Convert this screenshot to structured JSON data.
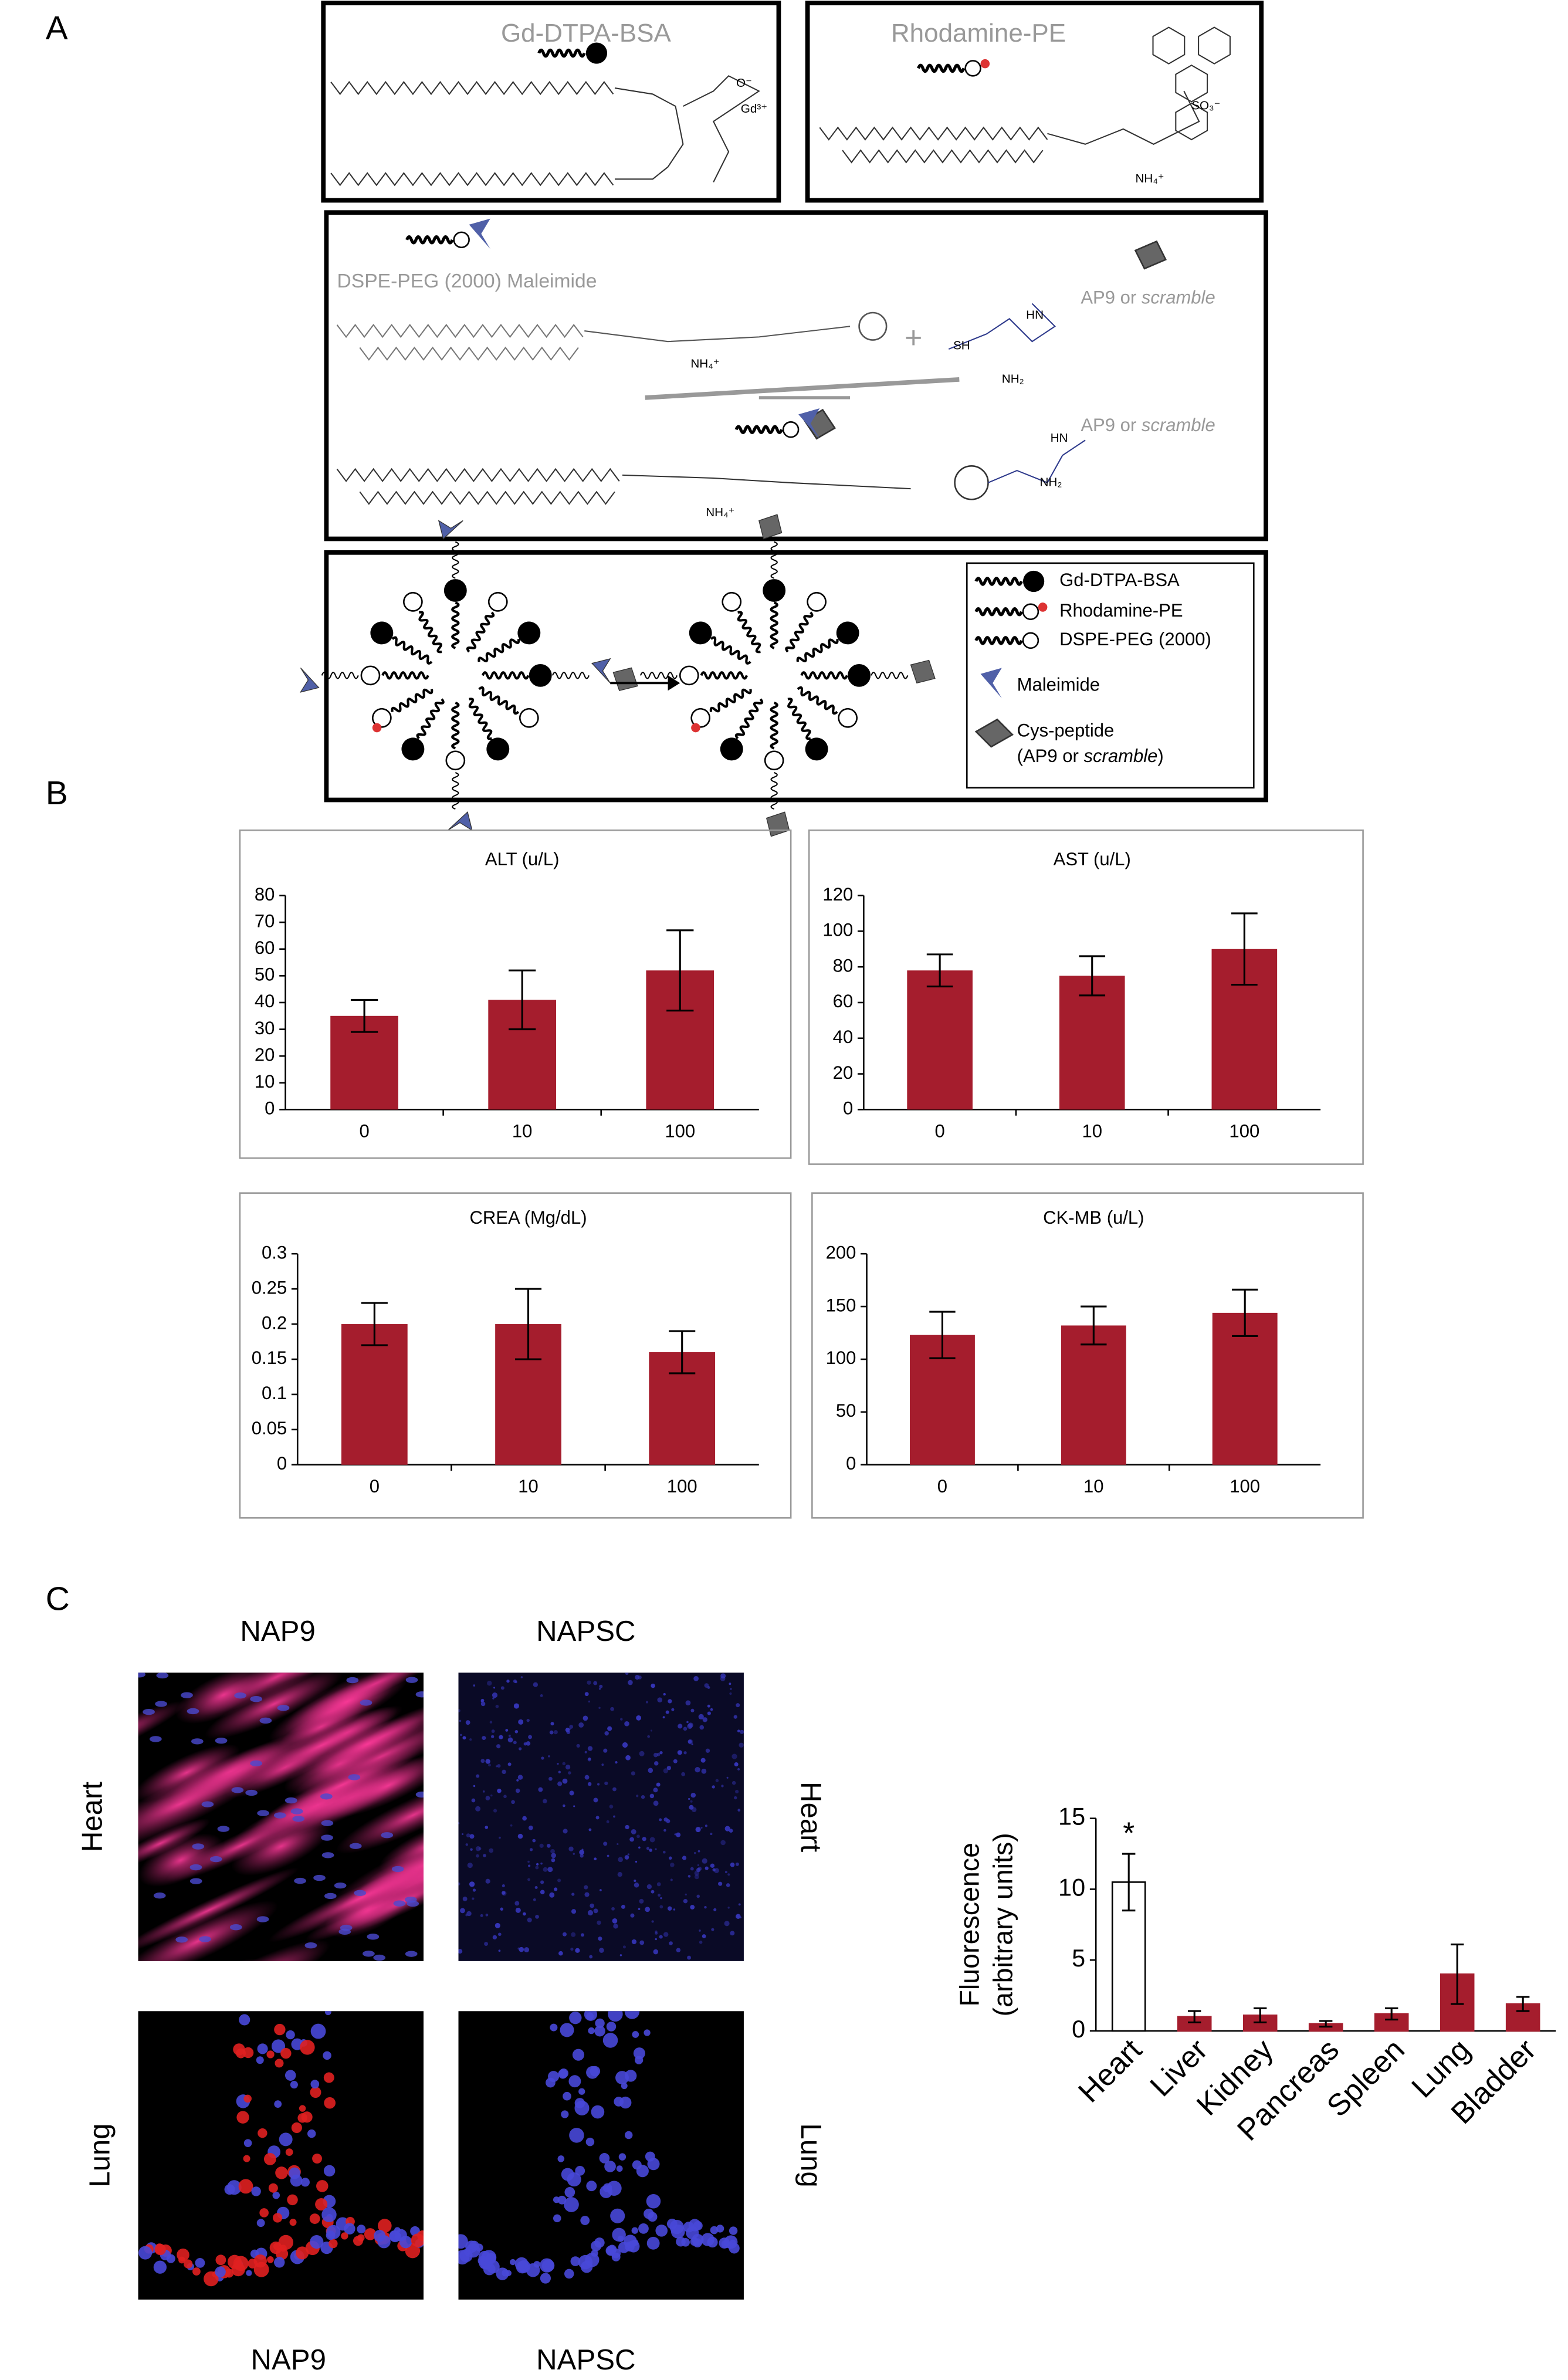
{
  "figure": {
    "panels": [
      "A",
      "B",
      "C"
    ],
    "panel_a": {
      "gd_title": "Gd-DTPA-BSA",
      "rho_title": "Rhodamine-PE",
      "dspe_title": "DSPE-PEG (2000) Maleimide",
      "peptide_top": {
        "text": "AP9 or ",
        "italic": "scramble"
      },
      "peptide_bottom": {
        "text": "AP9 or ",
        "italic": "scramble"
      },
      "plus": "+",
      "chem_labels": [
        "Gd³⁺",
        "O⁻",
        "SO₃⁻",
        "NH₄⁺",
        "HN",
        "NH₂",
        "SH",
        "NH₄⁺",
        "HN",
        "NH₂",
        "NH₄⁺"
      ],
      "legend": [
        "Gd-DTPA-BSA",
        "Rhodamine-PE",
        "DSPE-PEG (2000)",
        "Maleimide",
        "Cys-peptide"
      ],
      "legend_peptide": {
        "open": "(AP9 or ",
        "italic": "scramble",
        "close": ")"
      }
    },
    "panel_c": {
      "columns_top": [
        "NAP9",
        "NAPSC"
      ],
      "columns_bottom": [
        "NAP9",
        "NAPSC"
      ],
      "rows_left": [
        "Heart",
        "Lung"
      ],
      "rows_right": [
        "Heart",
        "Lung"
      ]
    }
  },
  "chart_data": [
    {
      "type": "bar",
      "title": "ALT (u/L)",
      "categories": [
        "0",
        "10",
        "100"
      ],
      "values": [
        35,
        41,
        52
      ],
      "errors": [
        6,
        11,
        15
      ],
      "color": "#a51d2d",
      "ylim": [
        0,
        80
      ],
      "yticks": [
        0,
        10,
        20,
        30,
        40,
        50,
        60,
        70,
        80
      ]
    },
    {
      "type": "bar",
      "title": "AST (u/L)",
      "categories": [
        "0",
        "10",
        "100"
      ],
      "values": [
        78,
        75,
        90
      ],
      "errors": [
        9,
        11,
        20
      ],
      "color": "#a51d2d",
      "ylim": [
        0,
        120
      ],
      "yticks": [
        0,
        20,
        40,
        60,
        80,
        100,
        120
      ]
    },
    {
      "type": "bar",
      "title": "CREA (Mg/dL)",
      "categories": [
        "0",
        "10",
        "100"
      ],
      "values": [
        0.2,
        0.2,
        0.16
      ],
      "errors": [
        0.03,
        0.05,
        0.03
      ],
      "color": "#a51d2d",
      "ylim": [
        0,
        0.3
      ],
      "yticks": [
        0,
        0.05,
        0.1,
        0.15,
        0.2,
        0.25,
        0.3
      ]
    },
    {
      "type": "bar",
      "title": "CK-MB (u/L)",
      "categories": [
        "0",
        "10",
        "100"
      ],
      "values": [
        123,
        132,
        144
      ],
      "errors": [
        22,
        18,
        22
      ],
      "color": "#a51d2d",
      "ylim": [
        0,
        200
      ],
      "yticks": [
        0,
        50,
        100,
        150,
        200
      ]
    },
    {
      "type": "bar",
      "ylabel": [
        "Fluorescence",
        "(arbitrary units)"
      ],
      "categories": [
        "Heart",
        "Liver",
        "Kidney",
        "Pancreas",
        "Spleen",
        "Lung",
        "Bladder"
      ],
      "values": [
        10.5,
        1,
        1.1,
        0.5,
        1.2,
        4,
        1.9
      ],
      "errors": [
        2,
        0.4,
        0.5,
        0.2,
        0.4,
        2.1,
        0.5
      ],
      "colors": [
        "#ffffff",
        "#a51d2d",
        "#a51d2d",
        "#a51d2d",
        "#a51d2d",
        "#a51d2d",
        "#a51d2d"
      ],
      "annotation": "*",
      "ylim": [
        0,
        15
      ],
      "yticks": [
        0,
        5,
        10,
        15
      ]
    }
  ]
}
